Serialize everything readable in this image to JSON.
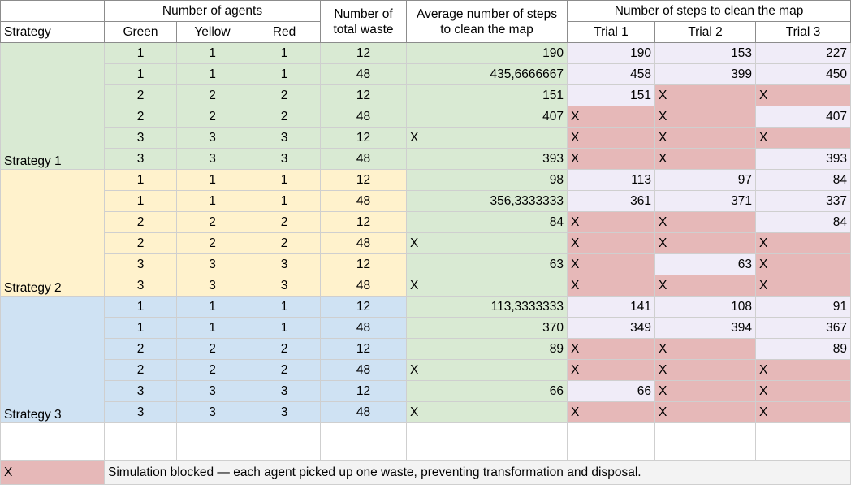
{
  "headers": {
    "strategy": "Strategy",
    "agents_group": "Number of agents",
    "agents": [
      "Green",
      "Yellow",
      "Red"
    ],
    "total_waste": "Number of total waste",
    "avg_steps": "Average number of steps to clean the map",
    "trials_group": "Number of steps to clean the map",
    "trials": [
      "Trial 1",
      "Trial 2",
      "Trial 3"
    ]
  },
  "colors": {
    "strategy_1": "#d9ead3",
    "strategy_2": "#fff2cc",
    "strategy_3": "#cfe2f3",
    "average": "#d9ead3",
    "trial_ok": "#f0ecf8",
    "blocked": "#e6b8b8"
  },
  "strategies": [
    {
      "name": "Strategy 1",
      "rows": [
        {
          "green": "1",
          "yellow": "1",
          "red": "1",
          "waste": "12",
          "avg": "190",
          "t1": "190",
          "t2": "153",
          "t3": "227"
        },
        {
          "green": "1",
          "yellow": "1",
          "red": "1",
          "waste": "48",
          "avg": "435,6666667",
          "t1": "458",
          "t2": "399",
          "t3": "450"
        },
        {
          "green": "2",
          "yellow": "2",
          "red": "2",
          "waste": "12",
          "avg": "151",
          "t1": "151",
          "t2": "X",
          "t3": "X"
        },
        {
          "green": "2",
          "yellow": "2",
          "red": "2",
          "waste": "48",
          "avg": "407",
          "t1": "X",
          "t2": "X",
          "t3": "407"
        },
        {
          "green": "3",
          "yellow": "3",
          "red": "3",
          "waste": "12",
          "avg": "X",
          "t1": "X",
          "t2": "X",
          "t3": "X"
        },
        {
          "green": "3",
          "yellow": "3",
          "red": "3",
          "waste": "48",
          "avg": "393",
          "t1": "X",
          "t2": "X",
          "t3": "393"
        }
      ]
    },
    {
      "name": "Strategy 2",
      "rows": [
        {
          "green": "1",
          "yellow": "1",
          "red": "1",
          "waste": "12",
          "avg": "98",
          "t1": "113",
          "t2": "97",
          "t3": "84"
        },
        {
          "green": "1",
          "yellow": "1",
          "red": "1",
          "waste": "48",
          "avg": "356,3333333",
          "t1": "361",
          "t2": "371",
          "t3": "337"
        },
        {
          "green": "2",
          "yellow": "2",
          "red": "2",
          "waste": "12",
          "avg": "84",
          "t1": "X",
          "t2": "X",
          "t3": "84"
        },
        {
          "green": "2",
          "yellow": "2",
          "red": "2",
          "waste": "48",
          "avg": "X",
          "t1": "X",
          "t2": "X",
          "t3": "X"
        },
        {
          "green": "3",
          "yellow": "3",
          "red": "3",
          "waste": "12",
          "avg": "63",
          "t1": "X",
          "t2": "63",
          "t3": "X"
        },
        {
          "green": "3",
          "yellow": "3",
          "red": "3",
          "waste": "48",
          "avg": "X",
          "t1": "X",
          "t2": "X",
          "t3": "X"
        }
      ]
    },
    {
      "name": "Strategy 3",
      "rows": [
        {
          "green": "1",
          "yellow": "1",
          "red": "1",
          "waste": "12",
          "avg": "113,3333333",
          "t1": "141",
          "t2": "108",
          "t3": "91"
        },
        {
          "green": "1",
          "yellow": "1",
          "red": "1",
          "waste": "48",
          "avg": "370",
          "t1": "349",
          "t2": "394",
          "t3": "367"
        },
        {
          "green": "2",
          "yellow": "2",
          "red": "2",
          "waste": "12",
          "avg": "89",
          "t1": "X",
          "t2": "X",
          "t3": "89"
        },
        {
          "green": "2",
          "yellow": "2",
          "red": "2",
          "waste": "48",
          "avg": "X",
          "t1": "X",
          "t2": "X",
          "t3": "X"
        },
        {
          "green": "3",
          "yellow": "3",
          "red": "3",
          "waste": "12",
          "avg": "66",
          "t1": "66",
          "t2": "X",
          "t3": "X"
        },
        {
          "green": "3",
          "yellow": "3",
          "red": "3",
          "waste": "48",
          "avg": "X",
          "t1": "X",
          "t2": "X",
          "t3": "X"
        }
      ]
    }
  ],
  "legend": {
    "symbol": "X",
    "text": "Simulation blocked — each agent picked up one waste, preventing transformation and disposal."
  }
}
